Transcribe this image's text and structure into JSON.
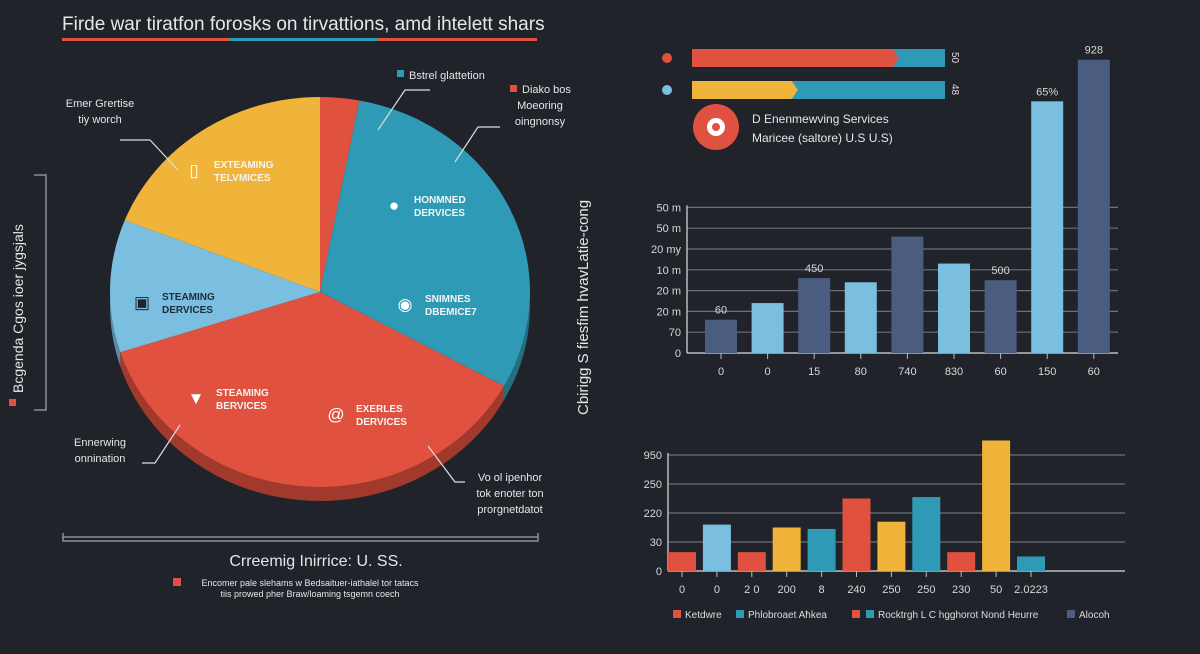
{
  "title": "Firde war tiratfon forosks on tirvattions, amd ihtelett shars",
  "colors": {
    "background": "#202329",
    "red": "#e0513f",
    "teal": "#2f9ab5",
    "yellow": "#f0b43a",
    "light_blue": "#7bbfe0",
    "slate": "#4a5d80"
  },
  "left_axis_label": "Bcgenda Cgos ioer jygsjals",
  "middle_axis_label": "Cbirigg S fiesfim hvavLatie-cong",
  "pie_caption": "Crreemig Inirrice: U. SS.",
  "pie_note": [
    "Encomer pale slehams w Bedsaituer-iathalel tor tatacs",
    "tiis prowed pher Braw/loaming tsgemn coech"
  ],
  "chart_data": [
    {
      "type": "pie",
      "slices": [
        {
          "label": "Diako bos",
          "value": 3,
          "color": "#e0513f",
          "icon": "none"
        },
        {
          "label": "HONMNED DERVICES",
          "value": 30,
          "color": "#2f9ab5",
          "icon": "money-bag-icon"
        },
        {
          "label": "EXERLES DERVICES",
          "value": 37,
          "color": "#e0513f",
          "icon": "at-icon"
        },
        {
          "label": "STEAMING DERVICES",
          "value": 11,
          "color": "#7bbfe0",
          "icon": "server-icon"
        },
        {
          "label": "EXTEAMING TELVMICES",
          "value": 19,
          "color": "#f0b43a",
          "icon": "phone-icon"
        }
      ],
      "inner_labels": [
        {
          "text": [
            "EXTEAMING",
            "TELVMICES"
          ],
          "icon": "phone-icon"
        },
        {
          "text": [
            "HONMNED",
            "DERVICES"
          ],
          "icon": "money-bag-icon"
        },
        {
          "text": [
            "STEAMING",
            "DERVICES"
          ],
          "icon": "server-icon"
        },
        {
          "text": [
            "SNIMNES",
            "DBEMICE7"
          ],
          "icon": "ring-icon"
        },
        {
          "text": [
            "STEAMING",
            "BERVICES"
          ],
          "icon": "diamond-icon"
        },
        {
          "text": [
            "EXERLES",
            "DERVICES"
          ],
          "icon": "at-icon"
        }
      ],
      "callouts": [
        {
          "text": [
            "Emer Grertise",
            "tiy worch"
          ]
        },
        {
          "text": [
            "Bstrel glattetion"
          ],
          "swatch": "#2f9ab5"
        },
        {
          "text": [
            "Diako bos",
            "Moeoring",
            "oingnonsy"
          ],
          "swatch": "#e0513f"
        },
        {
          "text": [
            "Ennerwing",
            "onnination"
          ]
        },
        {
          "text": [
            "Vo ol ipenhor",
            "tok enoter ton",
            "prorgnetdatot"
          ]
        }
      ]
    },
    {
      "type": "bar",
      "orientation": "horizontal",
      "series": [
        {
          "value_label": "50",
          "fill": 0.81,
          "fill_color": "#e0513f",
          "dot_color": "#e0513f"
        },
        {
          "value_label": "48",
          "fill": 0.41,
          "fill_color": "#f0b43a",
          "dot_color": "#7bbfe0"
        }
      ],
      "track_color": "#2f9ab5",
      "legend": {
        "icon": "target-icon",
        "lines": [
          "D Enenmewving Services",
          "Maricee (saltore)  U.S U.S)"
        ]
      }
    },
    {
      "type": "bar",
      "y_tick_labels": [
        "0",
        "70",
        "20 m",
        "20 m",
        "10 m",
        "20 my",
        "50 m",
        "50 m"
      ],
      "ylim": [
        0,
        14.5
      ],
      "grid": true,
      "categories": [
        "0",
        "0",
        "15",
        "80",
        "740",
        "830",
        "60",
        "150",
        "60"
      ],
      "values": [
        1.6,
        2.4,
        3.6,
        3.4,
        5.6,
        4.3,
        3.5,
        12.1,
        14.1
      ],
      "colors": [
        "#4a5d80",
        "#7bbfe0",
        "#4a5d80",
        "#7bbfe0",
        "#4a5d80",
        "#7bbfe0",
        "#4a5d80",
        "#7bbfe0",
        "#4a5d80"
      ],
      "data_labels": [
        "60",
        "",
        "450",
        "",
        "",
        "",
        "500",
        "65%",
        "928"
      ]
    },
    {
      "type": "bar",
      "y_tick_labels": [
        "0",
        "30",
        "220",
        "250",
        "950"
      ],
      "ylim": [
        0,
        4.6
      ],
      "grid": true,
      "categories": [
        "0",
        "0",
        "2 0",
        "200",
        "8",
        "240",
        "250",
        "250",
        "230",
        "50",
        "2.0223"
      ],
      "values": [
        0.65,
        1.6,
        0.65,
        1.5,
        1.45,
        2.5,
        1.7,
        2.55,
        0.65,
        4.5,
        0.5
      ],
      "colors": [
        "#e0513f",
        "#7bbfe0",
        "#e0513f",
        "#f0b43a",
        "#2f9ab5",
        "#e0513f",
        "#f0b43a",
        "#2f9ab5",
        "#e0513f",
        "#f0b43a",
        "#2f9ab5"
      ],
      "legend": [
        {
          "label": "Ketdwre",
          "color": "#e0513f"
        },
        {
          "label": "Phlobroaet Aħkea",
          "color": "#2f9ab5"
        },
        {
          "label": "",
          "color": "#e0513f"
        },
        {
          "label": "Rocktrgh L C hgghorot Nond Heurre",
          "color": "#2f9ab5"
        },
        {
          "label": "Alocoh",
          "color": "#4a5d80"
        }
      ]
    }
  ]
}
